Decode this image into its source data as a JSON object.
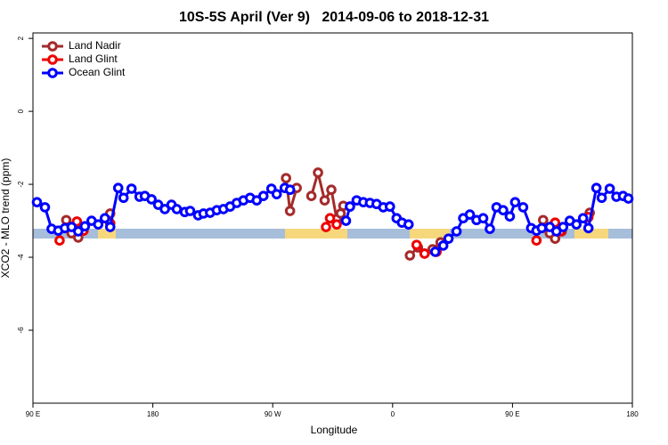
{
  "chart_data": {
    "type": "line",
    "title": "10S-5S April (Ver 9)   2014-09-06 to 2018-12-31",
    "x_label": "Longitude",
    "y_label": "XCO2 - MLO trend (ppm)",
    "xlim": [
      0,
      450
    ],
    "xticks": [
      {
        "value": 0,
        "label": "90 E"
      },
      {
        "value": 90,
        "label": "180"
      },
      {
        "value": 180,
        "label": "90 W"
      },
      {
        "value": 270,
        "label": "0"
      },
      {
        "value": 360,
        "label": "90 E"
      },
      {
        "value": 450,
        "label": "180"
      }
    ],
    "ylim": [
      -8,
      2.15
    ],
    "yticks": [
      -6,
      -4,
      -2,
      0,
      2
    ],
    "legend": "top-left",
    "series": [
      {
        "name": "Land Nadir",
        "color": "#a52a2a",
        "x": [
          25,
          29,
          34,
          null,
          58,
          null,
          190,
          193,
          198,
          null,
          209,
          214,
          219,
          224,
          228,
          231,
          233,
          null,
          283,
          289,
          294,
          300,
          306,
          null,
          383,
          388,
          392,
          397,
          null,
          418
        ],
        "values": [
          -2.98,
          -3.34,
          -3.46,
          null,
          -2.8,
          null,
          -1.83,
          -2.73,
          -2.1,
          null,
          -2.32,
          -1.68,
          -2.44,
          -2.15,
          -2.95,
          -2.8,
          -2.59,
          null,
          -3.95,
          -3.73,
          -3.9,
          -3.78,
          -3.59,
          null,
          -2.98,
          -3.34,
          -3.49,
          -3.29,
          null,
          -2.78
        ]
      },
      {
        "name": "Land Glint",
        "color": "#ee0000",
        "x": [
          20,
          null,
          33,
          38,
          null,
          58,
          null,
          220,
          223,
          228,
          null,
          288,
          294,
          303,
          null,
          378,
          null,
          392,
          396,
          null,
          417
        ],
        "values": [
          -3.54,
          null,
          -3.02,
          -3.27,
          null,
          -3.07,
          null,
          -3.17,
          -2.93,
          -3.1,
          null,
          -3.66,
          -3.9,
          -3.85,
          null,
          -3.54,
          null,
          -3.05,
          -3.29,
          null,
          -2.9
        ]
      },
      {
        "name": "Ocean Glint",
        "color": "#0000ff",
        "x": [
          3,
          9,
          14,
          19,
          24,
          29,
          34,
          39,
          44,
          49,
          54,
          58,
          64,
          68,
          74,
          80,
          84,
          89,
          94,
          99,
          104,
          108,
          114,
          118,
          124,
          128,
          133,
          138,
          143,
          148,
          153,
          158,
          163,
          168,
          173,
          179,
          183,
          189,
          193,
          null,
          235,
          238,
          243,
          248,
          253,
          258,
          263,
          268,
          273,
          277,
          282,
          null,
          302,
          308,
          312,
          318,
          323,
          328,
          333,
          338,
          343,
          348,
          353,
          358,
          362,
          368,
          374,
          378,
          382,
          388,
          393,
          398,
          403,
          408,
          413,
          417,
          423,
          427,
          433,
          438,
          443,
          447
        ],
        "values": [
          -2.49,
          -2.63,
          -3.22,
          -3.27,
          -3.2,
          -3.17,
          -3.29,
          -3.15,
          -3.0,
          -3.1,
          -2.93,
          -3.17,
          -2.1,
          -2.37,
          -2.12,
          -2.34,
          -2.32,
          -2.41,
          -2.56,
          -2.68,
          -2.56,
          -2.68,
          -2.76,
          -2.73,
          -2.85,
          -2.8,
          -2.78,
          -2.71,
          -2.68,
          -2.61,
          -2.51,
          -2.44,
          -2.37,
          -2.44,
          -2.32,
          -2.12,
          -2.27,
          -2.1,
          -2.15,
          null,
          -3.0,
          -2.61,
          -2.44,
          -2.49,
          -2.51,
          -2.54,
          -2.63,
          -2.61,
          -2.93,
          -3.05,
          -3.1,
          null,
          -3.85,
          -3.68,
          -3.49,
          -3.29,
          -2.93,
          -2.83,
          -2.98,
          -2.93,
          -3.22,
          -2.63,
          -2.71,
          -2.88,
          -2.49,
          -2.63,
          -3.2,
          -3.27,
          -3.2,
          -3.17,
          -3.29,
          -3.17,
          -3.0,
          -3.1,
          -2.93,
          -3.2,
          -2.1,
          -2.37,
          -2.12,
          -2.34,
          -2.32,
          -2.39
        ]
      }
    ]
  }
}
